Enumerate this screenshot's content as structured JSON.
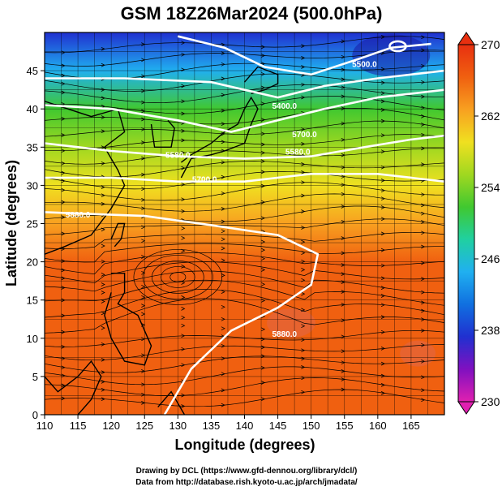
{
  "chart_data": {
    "type": "heatmap",
    "title": "GSM 18Z26Mar2024 (500.0hPa)",
    "xlabel": "Longitude (degrees)",
    "ylabel": "Latitude  (degrees)",
    "xlim": [
      110,
      170
    ],
    "ylim": [
      0,
      50
    ],
    "xticks": [
      110,
      115,
      120,
      125,
      130,
      135,
      140,
      145,
      150,
      155,
      160,
      165
    ],
    "yticks": [
      0,
      5,
      10,
      15,
      20,
      25,
      30,
      35,
      40,
      45
    ],
    "grid": true,
    "colorbar": {
      "vmin": 230,
      "vmax": 270,
      "ticks": [
        230,
        238,
        246,
        254,
        262,
        270
      ],
      "colors": [
        "#e020b0",
        "#8010c0",
        "#2030d0",
        "#1070e0",
        "#20b0f0",
        "#20d0a0",
        "#40c830",
        "#a0d820",
        "#f0e020",
        "#f8a020",
        "#f06010",
        "#e83010"
      ]
    },
    "temperature_bands": [
      {
        "lat": 0,
        "value": 266
      },
      {
        "lat": 5,
        "value": 266
      },
      {
        "lat": 10,
        "value": 266
      },
      {
        "lat": 15,
        "value": 266
      },
      {
        "lat": 20,
        "value": 265
      },
      {
        "lat": 25,
        "value": 262
      },
      {
        "lat": 30,
        "value": 258
      },
      {
        "lat": 35,
        "value": 254
      },
      {
        "lat": 40,
        "value": 250
      },
      {
        "lat": 45,
        "value": 244
      },
      {
        "lat": 50,
        "value": 238
      }
    ],
    "contours": [
      {
        "label": "5880.0",
        "points": [
          [
            110,
            26.5
          ],
          [
            125,
            26
          ],
          [
            135,
            24.8
          ],
          [
            145,
            23.5
          ],
          [
            151,
            21
          ],
          [
            150,
            17
          ],
          [
            145,
            14
          ],
          [
            138,
            11
          ],
          [
            132,
            6
          ],
          [
            128,
            0
          ]
        ]
      },
      {
        "label": "5700.0",
        "points": [
          [
            110,
            31
          ],
          [
            120,
            31
          ],
          [
            130,
            30.5
          ],
          [
            140,
            30.5
          ],
          [
            150,
            31.5
          ],
          [
            160,
            31.5
          ],
          [
            170,
            30.5
          ]
        ]
      },
      {
        "label": "5580.0",
        "points": [
          [
            110,
            35.5
          ],
          [
            120,
            34.5
          ],
          [
            130,
            33.8
          ],
          [
            140,
            33.5
          ],
          [
            150,
            33.8
          ],
          [
            158,
            35
          ],
          [
            165,
            36
          ],
          [
            170,
            36.5
          ]
        ]
      },
      {
        "label": "5400.0",
        "points": [
          [
            110,
            40.5
          ],
          [
            120,
            40
          ],
          [
            130,
            38.5
          ],
          [
            138,
            37
          ],
          [
            145,
            38.5
          ],
          [
            152,
            40
          ],
          [
            160,
            41.5
          ],
          [
            170,
            42.5
          ]
        ]
      },
      {
        "label": "5500.0",
        "points": [
          [
            110,
            44
          ],
          [
            122,
            44
          ],
          [
            135,
            43.5
          ],
          [
            145,
            41.5
          ],
          [
            152,
            43
          ],
          [
            160,
            44
          ],
          [
            170,
            45
          ]
        ]
      },
      {
        "label": "",
        "points": [
          [
            130,
            49.5
          ],
          [
            137,
            48
          ],
          [
            143,
            45.5
          ],
          [
            150,
            44.5
          ],
          [
            157,
            46.5
          ],
          [
            162,
            48
          ],
          [
            168,
            48.5
          ]
        ]
      }
    ],
    "contour_labels": [
      {
        "text": "5880.0",
        "x": 115,
        "y": 25.8
      },
      {
        "text": "5880.0",
        "x": 146,
        "y": 10.2
      },
      {
        "text": "5700.0",
        "x": 134,
        "y": 30.4
      },
      {
        "text": "5580.0",
        "x": 130,
        "y": 33.6
      },
      {
        "text": "5580.0",
        "x": 148,
        "y": 34
      },
      {
        "text": "5400.0",
        "x": 146,
        "y": 40
      },
      {
        "text": "5500.0",
        "x": 158,
        "y": 45.5
      },
      {
        "text": "5700.0",
        "x": 149,
        "y": 36.3
      }
    ],
    "low_center": {
      "x": 163,
      "y": 48.2
    }
  },
  "credits": {
    "line1": "Drawing by DCL (https://www.gfd-dennou.org/library/dcl/)",
    "line2": "Data from http://database.rish.kyoto-u.ac.jp/arch/jmadata/"
  }
}
